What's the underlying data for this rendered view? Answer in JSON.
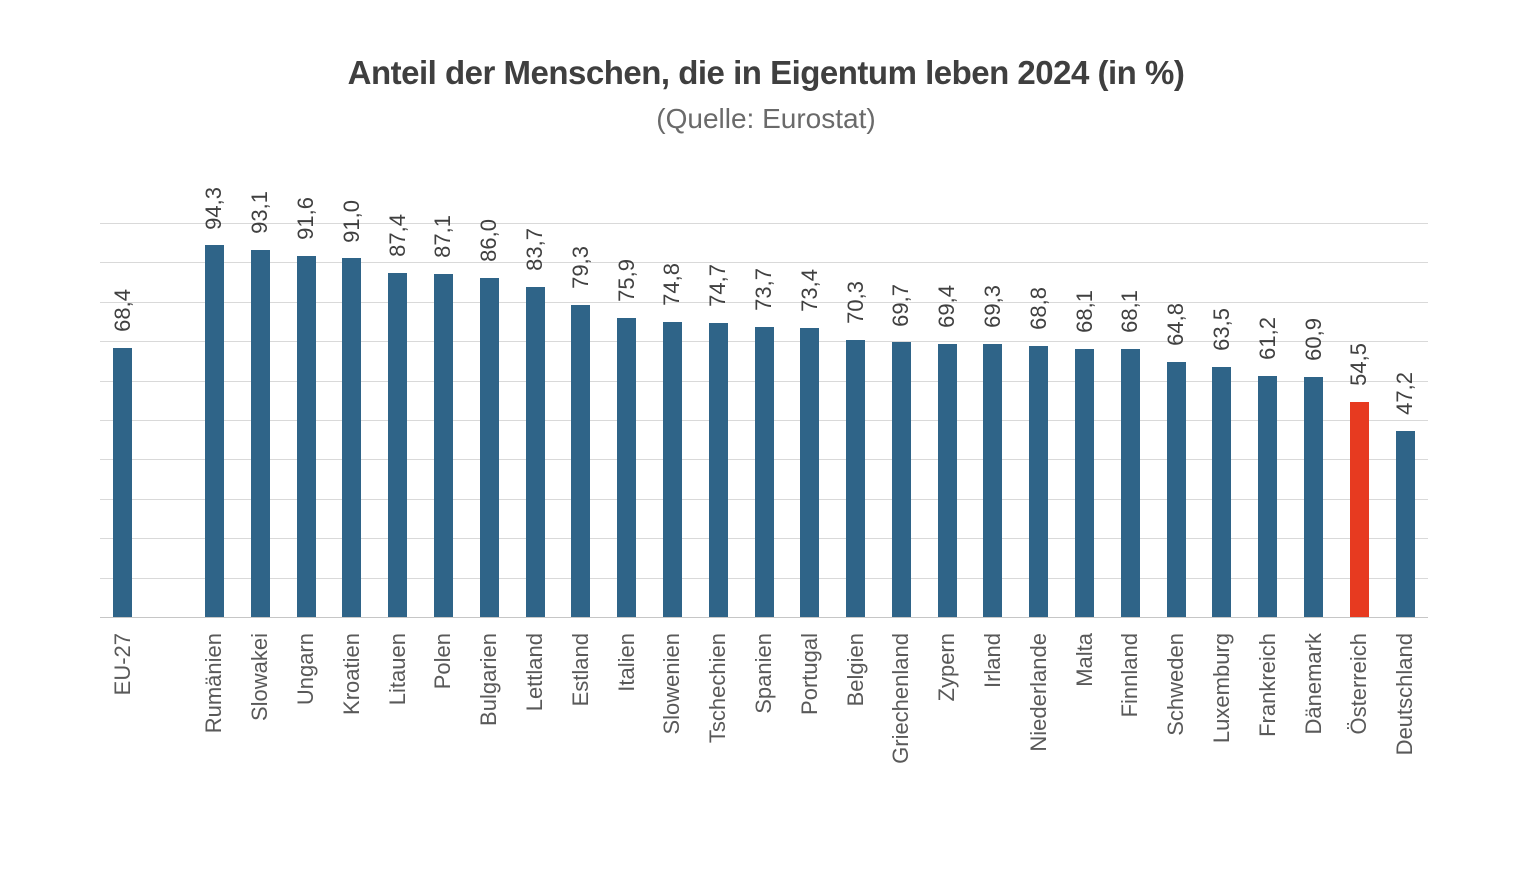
{
  "chart_data": {
    "type": "bar",
    "title": "Anteil der Menschen, die in Eigentum leben 2024 (in %)",
    "subtitle": "(Quelle: Eurostat)",
    "categories": [
      "EU-27",
      "Rumänien",
      "Slowakei",
      "Ungarn",
      "Kroatien",
      "Litauen",
      "Polen",
      "Bulgarien",
      "Lettland",
      "Estland",
      "Italien",
      "Slowenien",
      "Tschechien",
      "Spanien",
      "Portugal",
      "Belgien",
      "Griechenland",
      "Zypern",
      "Irland",
      "Niederlande",
      "Malta",
      "Finnland",
      "Schweden",
      "Luxemburg",
      "Frankreich",
      "Dänemark",
      "Österreich",
      "Deutschland"
    ],
    "values": [
      68.4,
      94.3,
      93.1,
      91.6,
      91.0,
      87.4,
      87.1,
      86.0,
      83.7,
      79.3,
      75.9,
      74.8,
      74.7,
      73.7,
      73.4,
      70.3,
      69.7,
      69.4,
      69.3,
      68.8,
      68.1,
      68.1,
      64.8,
      63.5,
      61.2,
      60.9,
      54.5,
      47.2
    ],
    "value_labels": [
      "68,4",
      "94,3",
      "93,1",
      "91,6",
      "91,0",
      "87,4",
      "87,1",
      "86,0",
      "83,7",
      "79,3",
      "75,9",
      "74,8",
      "74,7",
      "73,7",
      "73,4",
      "70,3",
      "69,7",
      "69,4",
      "69,3",
      "68,8",
      "68,1",
      "68,1",
      "64,8",
      "63,5",
      "61,2",
      "60,9",
      "54,5",
      "47,2"
    ],
    "highlighted_category": "Österreich",
    "colors": {
      "bar": "#2F6488",
      "highlight": "#E73A20",
      "gridline": "#D9D9D9",
      "axis": "#C6C6C6",
      "title": "#3F3F3F",
      "subtitle": "#6A6A6A",
      "value_label": "#404040",
      "category_label": "#595959"
    },
    "layout": {
      "ylim": [
        0,
        100
      ],
      "grid_step": 10,
      "grid": true,
      "legend": false,
      "value_labels_rotated_vertical": true,
      "category_labels_rotated_vertical": true,
      "gap_after_first_category": true
    }
  }
}
